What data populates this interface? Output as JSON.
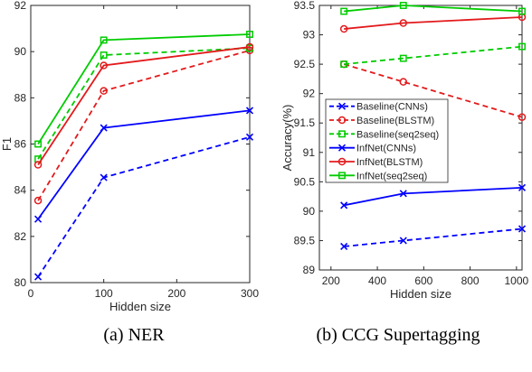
{
  "chart_data": [
    {
      "type": "line",
      "caption": "(a) NER",
      "xlabel": "Hidden size",
      "ylabel": "F1",
      "xlim": [
        0,
        300
      ],
      "ylim": [
        80,
        92
      ],
      "xticks": [
        0,
        100,
        200,
        300
      ],
      "yticks": [
        80,
        82,
        84,
        86,
        88,
        90,
        92
      ],
      "x": [
        10,
        100,
        300
      ],
      "series": [
        {
          "name": "Baseline(CNNs)",
          "color": "#0000ff",
          "dash": "dashed",
          "marker": "x",
          "values": [
            80.25,
            84.55,
            86.3
          ]
        },
        {
          "name": "Baseline(BLSTM)",
          "color": "#e31a1c",
          "dash": "dashed",
          "marker": "circle",
          "values": [
            83.55,
            88.3,
            90.05
          ]
        },
        {
          "name": "Baseline(seq2seq)",
          "color": "#00cc00",
          "dash": "dashed",
          "marker": "square",
          "values": [
            85.35,
            89.85,
            90.15
          ]
        },
        {
          "name": "InfNet(CNNs)",
          "color": "#0000ff",
          "dash": "solid",
          "marker": "x",
          "values": [
            82.75,
            86.7,
            87.45
          ]
        },
        {
          "name": "InfNet(BLSTM)",
          "color": "#e31a1c",
          "dash": "solid",
          "marker": "circle",
          "values": [
            85.1,
            89.4,
            90.2
          ]
        },
        {
          "name": "InfNet(seq2seq)",
          "color": "#00cc00",
          "dash": "solid",
          "marker": "square",
          "values": [
            86.0,
            90.5,
            90.75
          ]
        }
      ]
    },
    {
      "type": "line",
      "caption": "(b) CCG Supertagging",
      "xlabel": "Hidden size",
      "ylabel": "Accuracy(%)",
      "xlim": [
        150,
        1024
      ],
      "ylim": [
        89,
        93.5
      ],
      "xticks": [
        200,
        400,
        600,
        800,
        1000
      ],
      "yticks": [
        89,
        89.5,
        90,
        90.5,
        91,
        91.5,
        92,
        92.5,
        93,
        93.5
      ],
      "x": [
        256,
        512,
        1024
      ],
      "legend": {
        "position": "center-left"
      },
      "series": [
        {
          "name": "Baseline(CNNs)",
          "color": "#0000ff",
          "dash": "dashed",
          "marker": "x",
          "values": [
            89.4,
            89.5,
            89.7
          ]
        },
        {
          "name": "Baseline(BLSTM)",
          "color": "#e31a1c",
          "dash": "dashed",
          "marker": "circle",
          "values": [
            92.5,
            92.2,
            91.6
          ]
        },
        {
          "name": "Baseline(seq2seq)",
          "color": "#00cc00",
          "dash": "dashed",
          "marker": "square",
          "values": [
            92.5,
            92.6,
            92.8
          ]
        },
        {
          "name": "InfNet(CNNs)",
          "color": "#0000ff",
          "dash": "solid",
          "marker": "x",
          "values": [
            90.1,
            90.3,
            90.4
          ]
        },
        {
          "name": "InfNet(BLSTM)",
          "color": "#e31a1c",
          "dash": "solid",
          "marker": "circle",
          "values": [
            93.1,
            93.2,
            93.3
          ]
        },
        {
          "name": "InfNet(seq2seq)",
          "color": "#00cc00",
          "dash": "solid",
          "marker": "square",
          "values": [
            93.4,
            93.5,
            93.4
          ]
        }
      ]
    }
  ]
}
